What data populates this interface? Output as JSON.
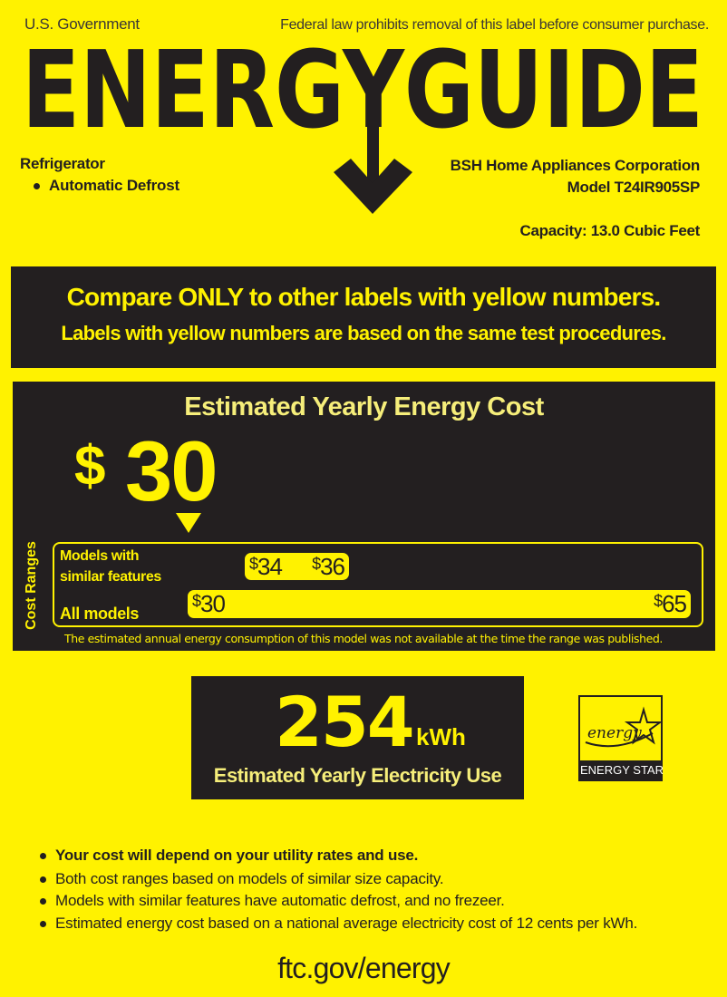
{
  "header": {
    "gov_label": "U.S. Government",
    "law_notice": "Federal law prohibits removal of this label before consumer purchase.",
    "logo_text": "ENERGYGUIDE",
    "product_type": "Refrigerator",
    "feature": "Automatic Defrost",
    "manufacturer": "BSH Home Appliances Corporation",
    "model": "Model T24IR905SP",
    "capacity": "Capacity: 13.0 Cubic Feet"
  },
  "compare": {
    "line1": "Compare ONLY to other labels with yellow numbers.",
    "line2": "Labels with yellow numbers are based on the same test procedures."
  },
  "cost": {
    "title": "Estimated Yearly Energy Cost",
    "currency": "$",
    "value": "30",
    "ranges_label": "Cost Ranges",
    "similar_label_1": "Models with",
    "similar_label_2": "similar features",
    "similar_min_sym": "$",
    "similar_min": "34",
    "similar_max_sym": "$",
    "similar_max": "36",
    "all_label": "All models",
    "all_min_sym": "$",
    "all_min": "30",
    "all_max_sym": "$",
    "all_max": "65",
    "footnote": "The estimated annual energy consumption of this model was not available at the time the range was published."
  },
  "electricity": {
    "value": "254",
    "unit": "kWh",
    "label": "Estimated Yearly Electricity Use"
  },
  "energy_star": {
    "script": "energy",
    "label": "ENERGY STAR"
  },
  "notes": [
    "Your cost will depend on your utility rates and use.",
    "Both cost ranges based on models of similar size capacity.",
    "Models with similar features have automatic defrost, and no frezeer.",
    "Estimated energy cost based on a national average electricity cost of 12 cents per kWh."
  ],
  "footer": {
    "url": "ftc.gov/energy"
  },
  "colors": {
    "label_yellow": "#fff200",
    "dark": "#231f20"
  }
}
